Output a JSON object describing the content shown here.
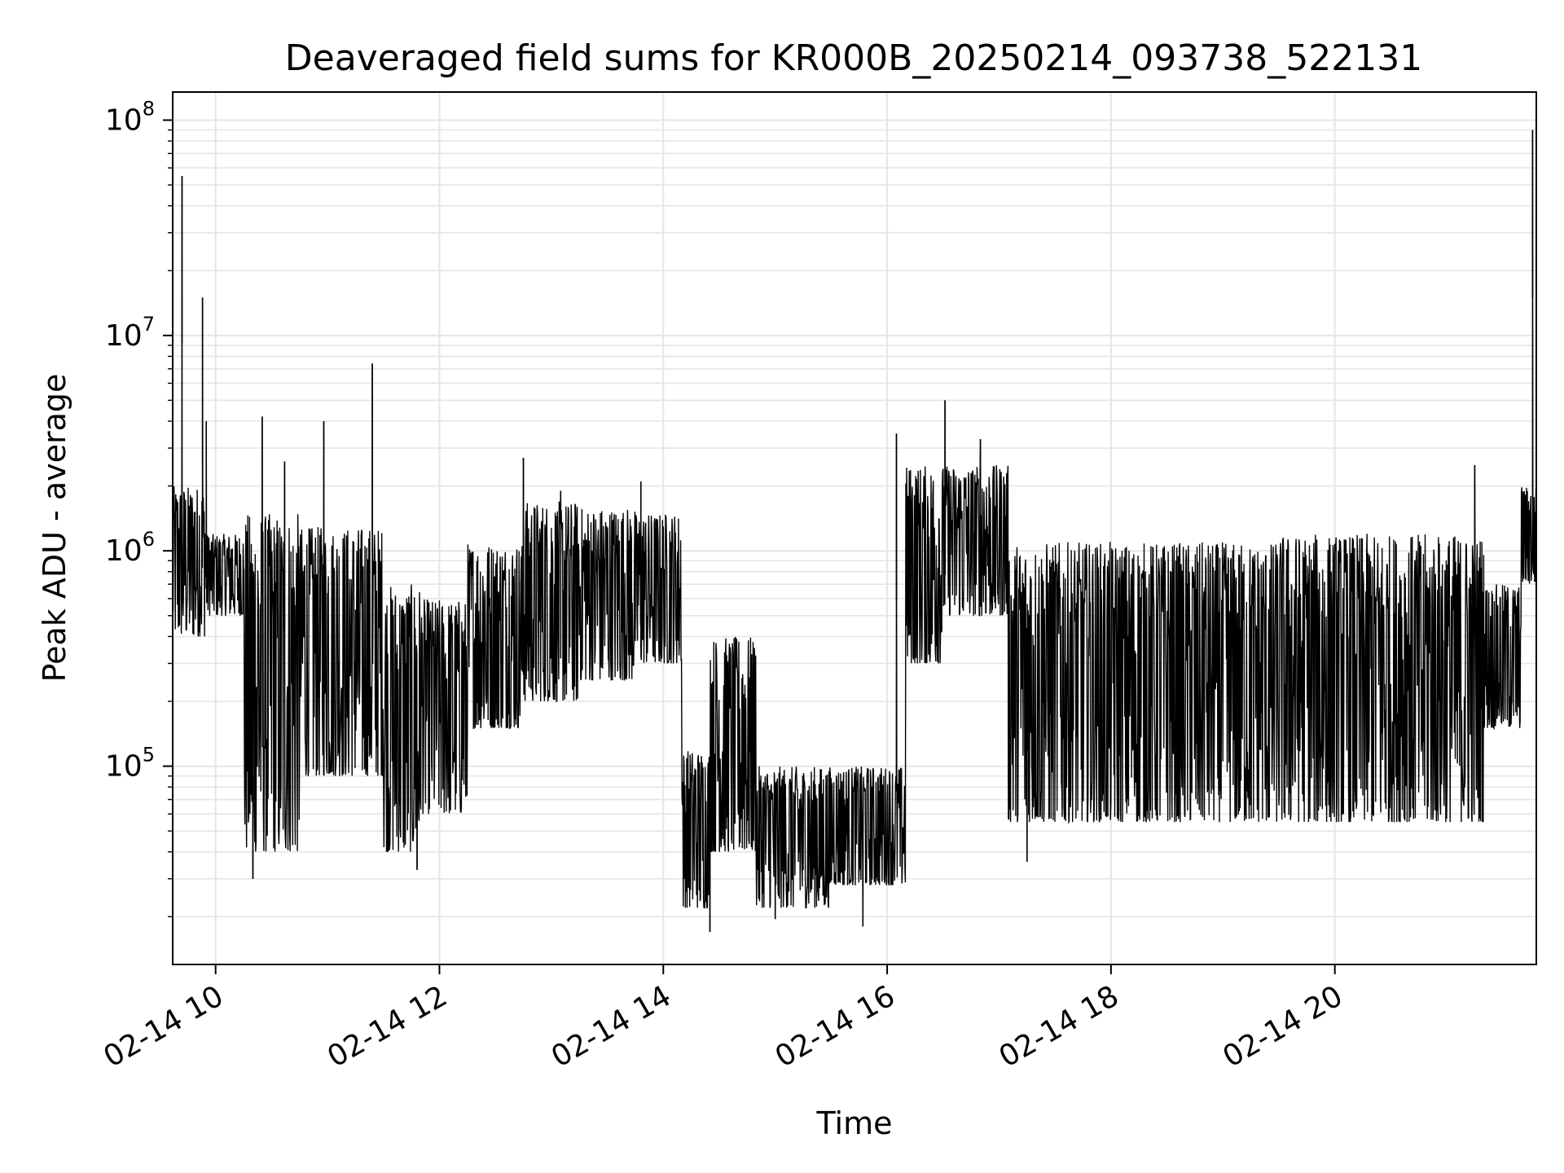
{
  "chart_data": {
    "type": "line",
    "title": "Deaveraged field sums for KR000B_20250214_093738_522131",
    "xlabel": "Time",
    "ylabel": "Peak ADU - average",
    "xlim": [
      "02-14 09:37",
      "02-14 21:48"
    ],
    "ylim": [
      12000,
      135000000
    ],
    "yscale": "log",
    "grid": true,
    "x_ticks": [
      "02-14 10",
      "02-14 12",
      "02-14 14",
      "02-14 16",
      "02-14 18",
      "02-14 20"
    ],
    "x_tick_hours": [
      10,
      12,
      14,
      16,
      18,
      20
    ],
    "y_ticks": [
      {
        "value": 100000,
        "base": "10",
        "exp": "5"
      },
      {
        "value": 1000000,
        "base": "10",
        "exp": "6"
      },
      {
        "value": 10000000,
        "base": "10",
        "exp": "7"
      },
      {
        "value": 100000000,
        "base": "10",
        "exp": "8"
      }
    ],
    "line_color": "#000000",
    "grid_color": "#e5e5e5",
    "segments": [
      {
        "start": "09:37",
        "end": "09:55",
        "lo": 400000,
        "hi": 2000000
      },
      {
        "start": "09:55",
        "end": "10:15",
        "lo": 500000,
        "hi": 1200000
      },
      {
        "start": "10:15",
        "end": "10:45",
        "lo": 40000,
        "hi": 1500000
      },
      {
        "start": "10:45",
        "end": "11:30",
        "lo": 90000,
        "hi": 1300000
      },
      {
        "start": "11:30",
        "end": "11:50",
        "lo": 40000,
        "hi": 700000
      },
      {
        "start": "11:50",
        "end": "12:15",
        "lo": 60000,
        "hi": 600000
      },
      {
        "start": "12:15",
        "end": "12:45",
        "lo": 150000,
        "hi": 1100000
      },
      {
        "start": "12:45",
        "end": "13:15",
        "lo": 200000,
        "hi": 1700000
      },
      {
        "start": "13:15",
        "end": "13:45",
        "lo": 250000,
        "hi": 1600000
      },
      {
        "start": "13:45",
        "end": "14:10",
        "lo": 300000,
        "hi": 1500000
      },
      {
        "start": "14:10",
        "end": "14:25",
        "lo": 22000,
        "hi": 120000
      },
      {
        "start": "14:25",
        "end": "14:50",
        "lo": 40000,
        "hi": 400000
      },
      {
        "start": "14:50",
        "end": "15:30",
        "lo": 22000,
        "hi": 100000
      },
      {
        "start": "15:30",
        "end": "16:10",
        "lo": 28000,
        "hi": 100000
      },
      {
        "start": "16:10",
        "end": "16:30",
        "lo": 300000,
        "hi": 2500000
      },
      {
        "start": "16:30",
        "end": "17:05",
        "lo": 500000,
        "hi": 2500000
      },
      {
        "start": "17:05",
        "end": "19:30",
        "lo": 55000,
        "hi": 1100000
      },
      {
        "start": "19:30",
        "end": "21:20",
        "lo": 55000,
        "hi": 1200000
      },
      {
        "start": "21:20",
        "end": "21:40",
        "lo": 150000,
        "hi": 700000
      },
      {
        "start": "21:40",
        "end": "21:48",
        "lo": 700000,
        "hi": 2000000
      }
    ],
    "spikes": [
      {
        "time": "09:42",
        "value": 55000000
      },
      {
        "time": "09:53",
        "value": 15000000
      },
      {
        "time": "09:55",
        "value": 4000000
      },
      {
        "time": "10:25",
        "value": 4200000
      },
      {
        "time": "10:37",
        "value": 2600000
      },
      {
        "time": "10:58",
        "value": 4000000
      },
      {
        "time": "11:24",
        "value": 7400000
      },
      {
        "time": "12:45",
        "value": 2700000
      },
      {
        "time": "13:05",
        "value": 1900000
      },
      {
        "time": "13:48",
        "value": 2100000
      },
      {
        "time": "16:05",
        "value": 3500000
      },
      {
        "time": "16:31",
        "value": 5000000
      },
      {
        "time": "16:50",
        "value": 3300000
      },
      {
        "time": "21:15",
        "value": 2500000
      },
      {
        "time": "21:46",
        "value": 90000000
      }
    ],
    "dips": [
      {
        "time": "10:20",
        "value": 30000
      },
      {
        "time": "11:48",
        "value": 33000
      },
      {
        "time": "14:25",
        "value": 17000
      },
      {
        "time": "15:00",
        "value": 19500
      },
      {
        "time": "15:47",
        "value": 18000
      },
      {
        "time": "17:15",
        "value": 36000
      }
    ]
  }
}
